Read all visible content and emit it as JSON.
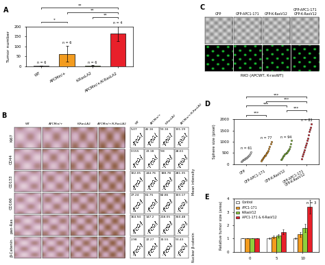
{
  "chart_data": [
    {
      "type": "bar",
      "title": "A",
      "ylabel": "Tumor number",
      "categories": [
        "WT",
        "APCMin/+",
        "K-RasLA2",
        "APCMin/+/K-RasLA2"
      ],
      "values": [
        2,
        62,
        3,
        165
      ],
      "errors": [
        1,
        40,
        2,
        38
      ],
      "colors": [
        "#ffffff",
        "#f39c1f",
        "#8fcf3c",
        "#e8202a"
      ],
      "ylim": [
        0,
        200
      ],
      "yticks": [
        0,
        50,
        100,
        150,
        200
      ],
      "n_labels": [
        "n = 6",
        "n = 6",
        "n = 6",
        "n = 4"
      ],
      "significance": [
        {
          "from": 0,
          "to": 1,
          "label": "*"
        },
        {
          "from": 2,
          "to": 3,
          "label": "**"
        },
        {
          "from": 1,
          "to": 3,
          "label": "**"
        },
        {
          "from": 0,
          "to": 3,
          "label": "**"
        }
      ]
    },
    {
      "type": "scatter",
      "title": "D",
      "ylabel": "Sphere size (pixel)",
      "categories": [
        "GFP",
        "GFP-APC1-171",
        "GFP-K-RasV12",
        "GFP-APC1-171\nGFP-K-RasV12"
      ],
      "points": [
        [
          120,
          150,
          180,
          200,
          220,
          250,
          260,
          280,
          300,
          320,
          350,
          380,
          420,
          480,
          560
        ],
        [
          150,
          200,
          250,
          300,
          330,
          380,
          400,
          450,
          500,
          550,
          600,
          700,
          800,
          900,
          1000
        ],
        [
          200,
          250,
          300,
          350,
          400,
          450,
          480,
          520,
          560,
          600,
          650,
          700,
          800,
          900,
          1050
        ],
        [
          250,
          350,
          450,
          550,
          650,
          750,
          850,
          950,
          1050,
          1150,
          1300,
          1450,
          1550,
          1650,
          1800
        ]
      ],
      "colors": [
        "#ffffff",
        "#f39c1f",
        "#8fcf3c",
        "#e8202a"
      ],
      "ylim": [
        0,
        2000
      ],
      "yticks": [
        0,
        500,
        1000,
        1500,
        2000
      ],
      "n_labels": [
        "n = 61",
        "n = 77",
        "n = 94",
        "n = 83"
      ],
      "significance": [
        {
          "from": 0,
          "to": 1,
          "label": "***"
        },
        {
          "from": 2,
          "to": 3,
          "label": "***"
        },
        {
          "from": 0,
          "to": 2,
          "label": "***"
        },
        {
          "from": 1,
          "to": 3,
          "label": "***"
        },
        {
          "from": 0,
          "to": 3,
          "label": "***"
        }
      ]
    },
    {
      "type": "bar",
      "title": "E",
      "ylabel": "Relative tumor size (area)",
      "categories": [
        "0",
        "5",
        "10"
      ],
      "series": [
        {
          "name": "Control",
          "color": "#ffffff",
          "values": [
            1,
            1,
            1
          ],
          "errors": [
            0,
            0.05,
            0.05
          ]
        },
        {
          "name": "APC1-171",
          "color": "#f39c1f",
          "values": [
            1,
            1.1,
            1.3
          ],
          "errors": [
            0,
            0.1,
            0.2
          ]
        },
        {
          "name": "K-RasV12",
          "color": "#8fcf3c",
          "values": [
            1,
            1.2,
            1.8
          ],
          "errors": [
            0,
            0.15,
            0.3
          ]
        },
        {
          "name": "APC1-171 & K-RasV12",
          "color": "#e8202a",
          "values": [
            1,
            1.5,
            3.4
          ],
          "errors": [
            0,
            0.2,
            0.5
          ]
        }
      ],
      "ylim": [
        0,
        4
      ],
      "yticks": [
        0,
        1,
        2,
        3,
        4
      ],
      "legend": "upper left",
      "n_label": "n = 3"
    }
  ],
  "panel_b": {
    "title": "B",
    "columns": [
      "WT",
      "APCMin/+",
      "K-RasLA2",
      "APCMin/+/K-RasLA2"
    ],
    "rows": [
      "Ki67",
      "CD44",
      "CD133",
      "CD166",
      "pan-Ras",
      "β-Catenin"
    ],
    "flow_values": [
      [
        5.07,
        42.16,
        53.16,
        131.19
      ],
      [
        0.155,
        23.18,
        9.8,
        28.61
      ],
      [
        102.05,
        244.76,
        188.78,
        281.35
      ],
      [
        27.24,
        61.75,
        82.86,
        103.17
      ],
      [
        164.94,
        147.2,
        218.05,
        350.48
      ],
      [
        2.98,
        22.27,
        33.55,
        53.43
      ]
    ],
    "side_labels": [
      "Mean intensity",
      "Nuclear β-catenin"
    ]
  },
  "panel_c": {
    "title": "C",
    "columns": [
      "GFP",
      "GFP-APC1-171",
      "GFP-K-RasV12",
      "GFP-APC1-171\nGFP-K-RasV12"
    ],
    "caption": "RKO (APCWT, K-rasWT)"
  }
}
